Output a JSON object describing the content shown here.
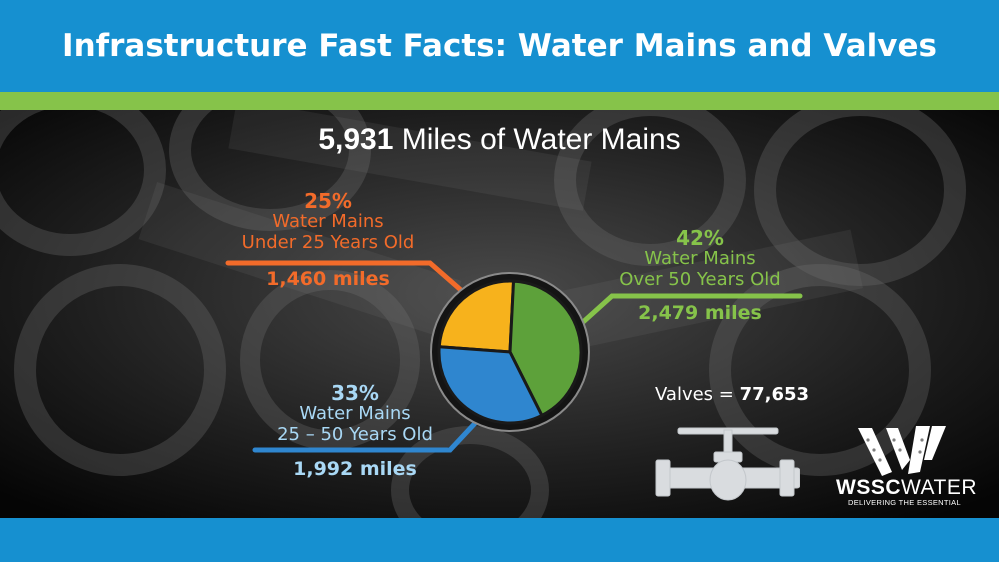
{
  "header": {
    "title": "Infrastructure Fast Facts: Water Mains and Valves"
  },
  "main_title": {
    "value": "5,931",
    "text": "Miles of Water Mains"
  },
  "valves": {
    "label": "Valves =",
    "value": "77,653"
  },
  "logo": {
    "name_bold": "WSSC",
    "name_light": "WATER",
    "tagline": "DELIVERING THE ESSENTIAL"
  },
  "colors": {
    "header_blue": "#1690d0",
    "stripe_green": "#86c34a",
    "orange": "#f26b2a",
    "slice_yellow": "#f7b21c",
    "slice_green": "#5da13a",
    "slice_blue": "#2f86cf",
    "light_blue_text": "#a9d8f5"
  },
  "chart_data": {
    "type": "pie",
    "title": "Miles of Water Mains",
    "total": 5931,
    "slices": [
      {
        "pct_label": "25%",
        "label_line1": "Water Mains",
        "label_line2": "Under 25 Years Old",
        "miles_label": "1,460 miles",
        "miles": 1460
      },
      {
        "pct_label": "42%",
        "label_line1": "Water Mains",
        "label_line2": "Over 50 Years Old",
        "miles_label": "2,479 miles",
        "miles": 2479
      },
      {
        "pct_label": "33%",
        "label_line1": "Water Mains",
        "label_line2": "25 – 50 Years Old",
        "miles_label": "1,992 miles",
        "miles": 1992
      }
    ]
  }
}
